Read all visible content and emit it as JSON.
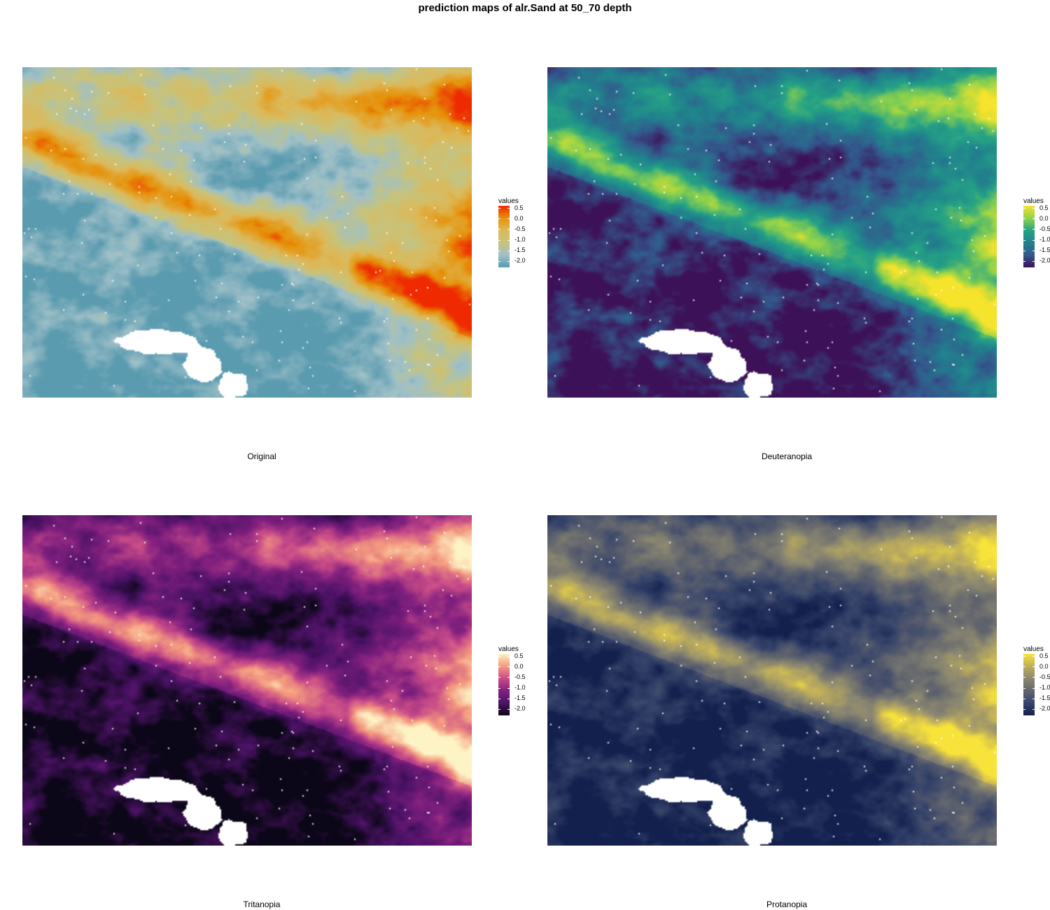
{
  "title": "prediction maps of alr.Sand at 50_70 depth",
  "legend": {
    "title": "values",
    "ticks": [
      "0.5",
      "0.0",
      "-0.5",
      "-1.0",
      "-1.5",
      "-2.0"
    ],
    "tick_values": [
      0.5,
      0.0,
      -0.5,
      -1.0,
      -1.5,
      -2.0
    ],
    "range": [
      -2.3,
      0.6
    ]
  },
  "panels": [
    {
      "caption": "Original",
      "ramp": [
        "#5b9bb0",
        "#9fc0c8",
        "#c8c37c",
        "#dcb95a",
        "#e6920a",
        "#ef2a00"
      ]
    },
    {
      "caption": "Deuteranopia",
      "ramp": [
        "#3d1158",
        "#33588c",
        "#21828d",
        "#25a285",
        "#8fd24b",
        "#f6e32c"
      ]
    },
    {
      "caption": "Tritanopia",
      "ramp": [
        "#0c0718",
        "#4c1266",
        "#82207f",
        "#c94c88",
        "#f49a7f",
        "#fdf3c4"
      ]
    },
    {
      "caption": "Protanopia",
      "ramp": [
        "#13204e",
        "#37446a",
        "#62656e",
        "#8b8770",
        "#bfae5c",
        "#f8e33a"
      ]
    }
  ]
}
